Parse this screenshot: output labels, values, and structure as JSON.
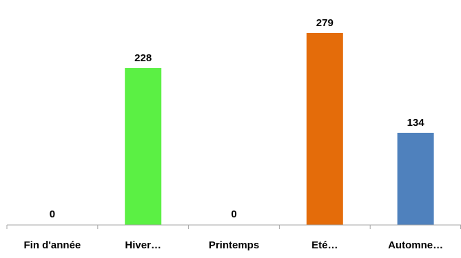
{
  "chart_data": {
    "type": "bar",
    "title": "",
    "xlabel": "",
    "ylabel": "",
    "categories": [
      "Fin d'année",
      "Hiver…",
      "Printemps",
      "Eté…",
      "Automne…"
    ],
    "values": [
      0,
      228,
      0,
      279,
      134
    ],
    "data_labels": [
      "0",
      "228",
      "0",
      "279",
      "134"
    ],
    "colors": [
      "#5bf044",
      "#5bf044",
      "#5bf044",
      "#e46c0a",
      "#4f81bd"
    ],
    "ylim": [
      0,
      300
    ],
    "grid": false,
    "legend": "none",
    "axis_color": "#a6a6a6"
  }
}
